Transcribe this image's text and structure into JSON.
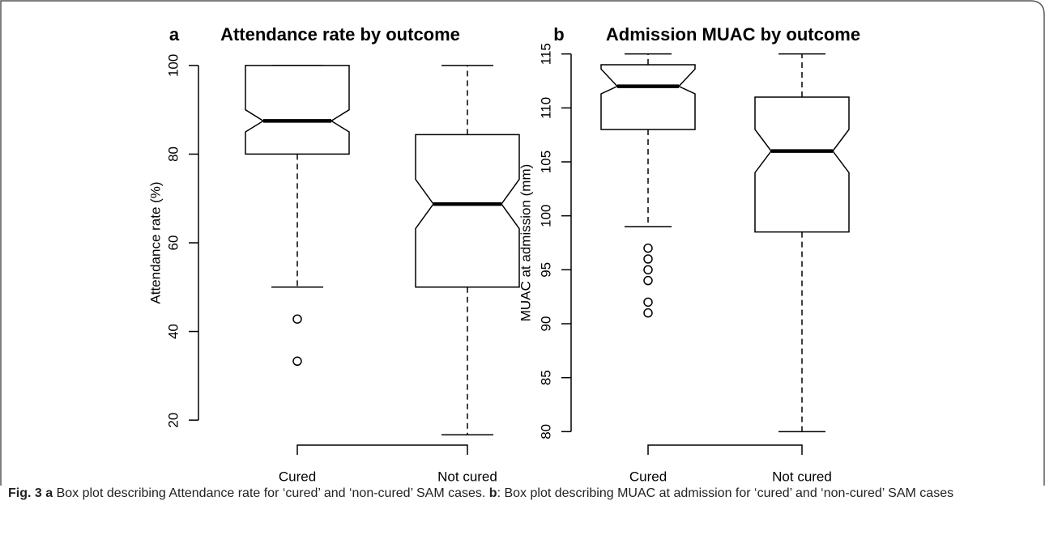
{
  "chart_data": [
    {
      "type": "box",
      "panel_label": "a",
      "title": "Attendance rate by outcome",
      "ylabel": "Attendance rate (%)",
      "categories": [
        "Cured",
        "Not cured"
      ],
      "boxes": [
        {
          "min": 50,
          "q1": 80,
          "median": 87.5,
          "q3": 100,
          "max": 100,
          "notch_low": 85,
          "notch_high": 90,
          "outliers": [
            42.8,
            33.3
          ]
        },
        {
          "min": 16.7,
          "q1": 50,
          "median": 68.75,
          "q3": 84.4,
          "max": 100,
          "notch_low": 63.2,
          "notch_high": 74.3,
          "outliers": []
        }
      ],
      "ylim": [
        14,
        106
      ],
      "yticks": [
        20,
        40,
        60,
        80,
        100
      ]
    },
    {
      "type": "box",
      "panel_label": "b",
      "title": "Admission MUAC by outcome",
      "ylabel": "MUAC at admission (mm)",
      "categories": [
        "Cured",
        "Not cured"
      ],
      "boxes": [
        {
          "min": 99,
          "q1": 108,
          "median": 112,
          "q3": 114,
          "max": 115,
          "notch_low": 111.3,
          "notch_high": 113.6,
          "outliers": [
            97,
            96,
            95,
            94,
            92,
            91
          ]
        },
        {
          "min": 80,
          "q1": 98.5,
          "median": 106,
          "q3": 111,
          "max": 115,
          "notch_low": 104,
          "notch_high": 108,
          "outliers": []
        }
      ],
      "ylim": [
        78.6,
        116.4
      ],
      "yticks": [
        80,
        85,
        90,
        95,
        100,
        105,
        110,
        115
      ]
    }
  ],
  "caption": [
    {
      "text": "Fig. 3 a",
      "bold": true
    },
    {
      "text": " Box plot describing Attendance rate for ‘cured’ and ‘non-cured’ SAM cases. ",
      "bold": false
    },
    {
      "text": "b",
      "bold": true
    },
    {
      "text": ": Box plot describing MUAC at admission for ‘cured’ and ‘non-cured’ SAM cases",
      "bold": false
    }
  ]
}
